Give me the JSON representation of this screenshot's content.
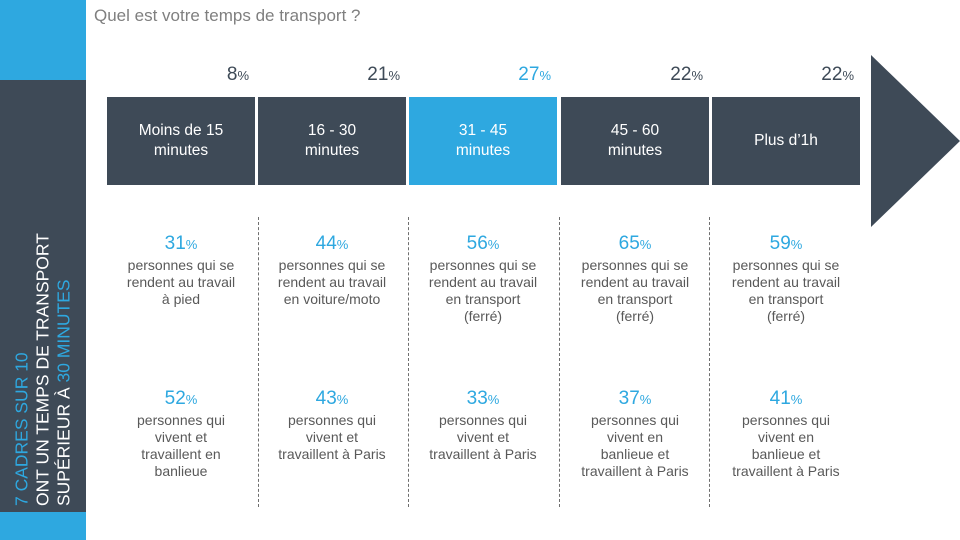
{
  "title": "Quel est votre temps de transport ?",
  "side": {
    "line1": "7 CADRES SUR 10",
    "line2": "ONT UN TEMPS DE TRANSPORT",
    "line3_prefix": "SUPÉRIEUR À ",
    "line3_highlight": "30 MINUTES"
  },
  "colors": {
    "dark": "#3e4a57",
    "accent": "#2ea8e0",
    "text": "#595959"
  },
  "columns": [
    {
      "pct": "8",
      "label": "Moins de 15\nminutes",
      "highlight": false,
      "stat1_pct": "31",
      "stat1_text": "personnes qui se\nrendent au travail\nà pied",
      "stat2_pct": "52",
      "stat2_text": "personnes qui\nvivent et\ntravaillent en\nbanlieue"
    },
    {
      "pct": "21",
      "label": "16 - 30\nminutes",
      "highlight": false,
      "stat1_pct": "44",
      "stat1_text": "personnes qui se\nrendent au travail\nen voiture/moto",
      "stat2_pct": "43",
      "stat2_text": "personnes qui\nvivent et\ntravaillent à Paris"
    },
    {
      "pct": "27",
      "label": "31 - 45\nminutes",
      "highlight": true,
      "stat1_pct": "56",
      "stat1_text": "personnes qui se\nrendent au travail\nen transport\n(ferré)",
      "stat2_pct": "33",
      "stat2_text": "personnes qui\nvivent et\ntravaillent à Paris"
    },
    {
      "pct": "22",
      "label": "45 - 60\nminutes",
      "highlight": false,
      "stat1_pct": "65",
      "stat1_text": "personnes qui se\nrendent au travail\nen transport\n(ferré)",
      "stat2_pct": "37",
      "stat2_text": "personnes qui\nvivent en\nbanlieue et\ntravaillent à Paris"
    },
    {
      "pct": "22",
      "label": "Plus d’1h",
      "highlight": false,
      "stat1_pct": "59",
      "stat1_text": "personnes qui se\nrendent au travail\nen transport\n(ferré)",
      "stat2_pct": "41",
      "stat2_text": "personnes qui\nvivent en\nbanlieue et\ntravaillent à Paris"
    }
  ],
  "pct_symbol": "%"
}
